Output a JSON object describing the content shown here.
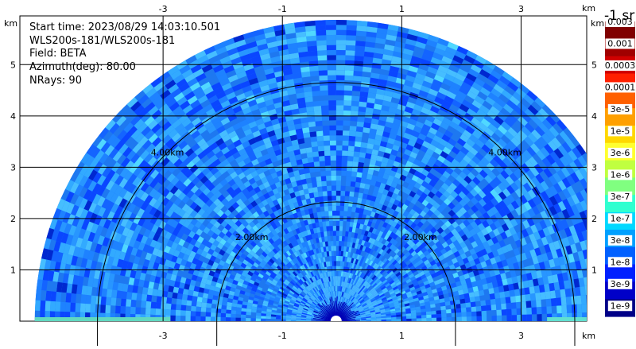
{
  "header": {
    "start_time": "Start time: 2023/08/29 14:03:10.501",
    "instrument": "WLS200s-181/WLS200s-181",
    "field": "Field: BETA",
    "azimuth": "Azimuth(deg): 80.00",
    "nrays": "NRays: 90"
  },
  "axes": {
    "x_unit": "km",
    "y_unit": "km",
    "x_ticks": [
      -3,
      -1,
      1,
      3
    ],
    "y_ticks": [
      1,
      2,
      3,
      4,
      5
    ],
    "x_range": [
      -5.4,
      4.1
    ],
    "y_range": [
      0,
      5.95
    ]
  },
  "range_rings": [
    {
      "radius_km": 2,
      "label": "2.00km"
    },
    {
      "radius_km": 4,
      "label": "4.00km"
    }
  ],
  "colorbar": {
    "title": "-1 sr",
    "labels": [
      "0.003",
      "0.001",
      "0.0003",
      "0.0001",
      "3e-5",
      "1e-5",
      "3e-6",
      "1e-6",
      "3e-7",
      "1e-7",
      "3e-8",
      "1e-8",
      "3e-9",
      "1e-9"
    ],
    "colors": [
      "#800000",
      "#a00000",
      "#d00000",
      "#ff2000",
      "#ff6000",
      "#ffa000",
      "#ffd800",
      "#ffff30",
      "#c0ff40",
      "#80ff80",
      "#30ffd0",
      "#00d8ff",
      "#00a0ff",
      "#0060ff",
      "#0020ff",
      "#0000c8",
      "#000088"
    ]
  },
  "chart_data": {
    "type": "heatmap",
    "subtype": "ppi-sector",
    "title": "",
    "xlabel": "km",
    "ylabel": "km",
    "xlim": [
      -5.4,
      4.1
    ],
    "ylim": [
      0,
      5.95
    ],
    "sector_center_km": [
      -0.1,
      0
    ],
    "max_range_km": 5.05,
    "azimuth_span_deg": [
      0,
      180
    ],
    "grid": true,
    "colorbar_scale": "log",
    "colorbar_range": [
      1e-09,
      0.003
    ],
    "field": "BETA"
  }
}
